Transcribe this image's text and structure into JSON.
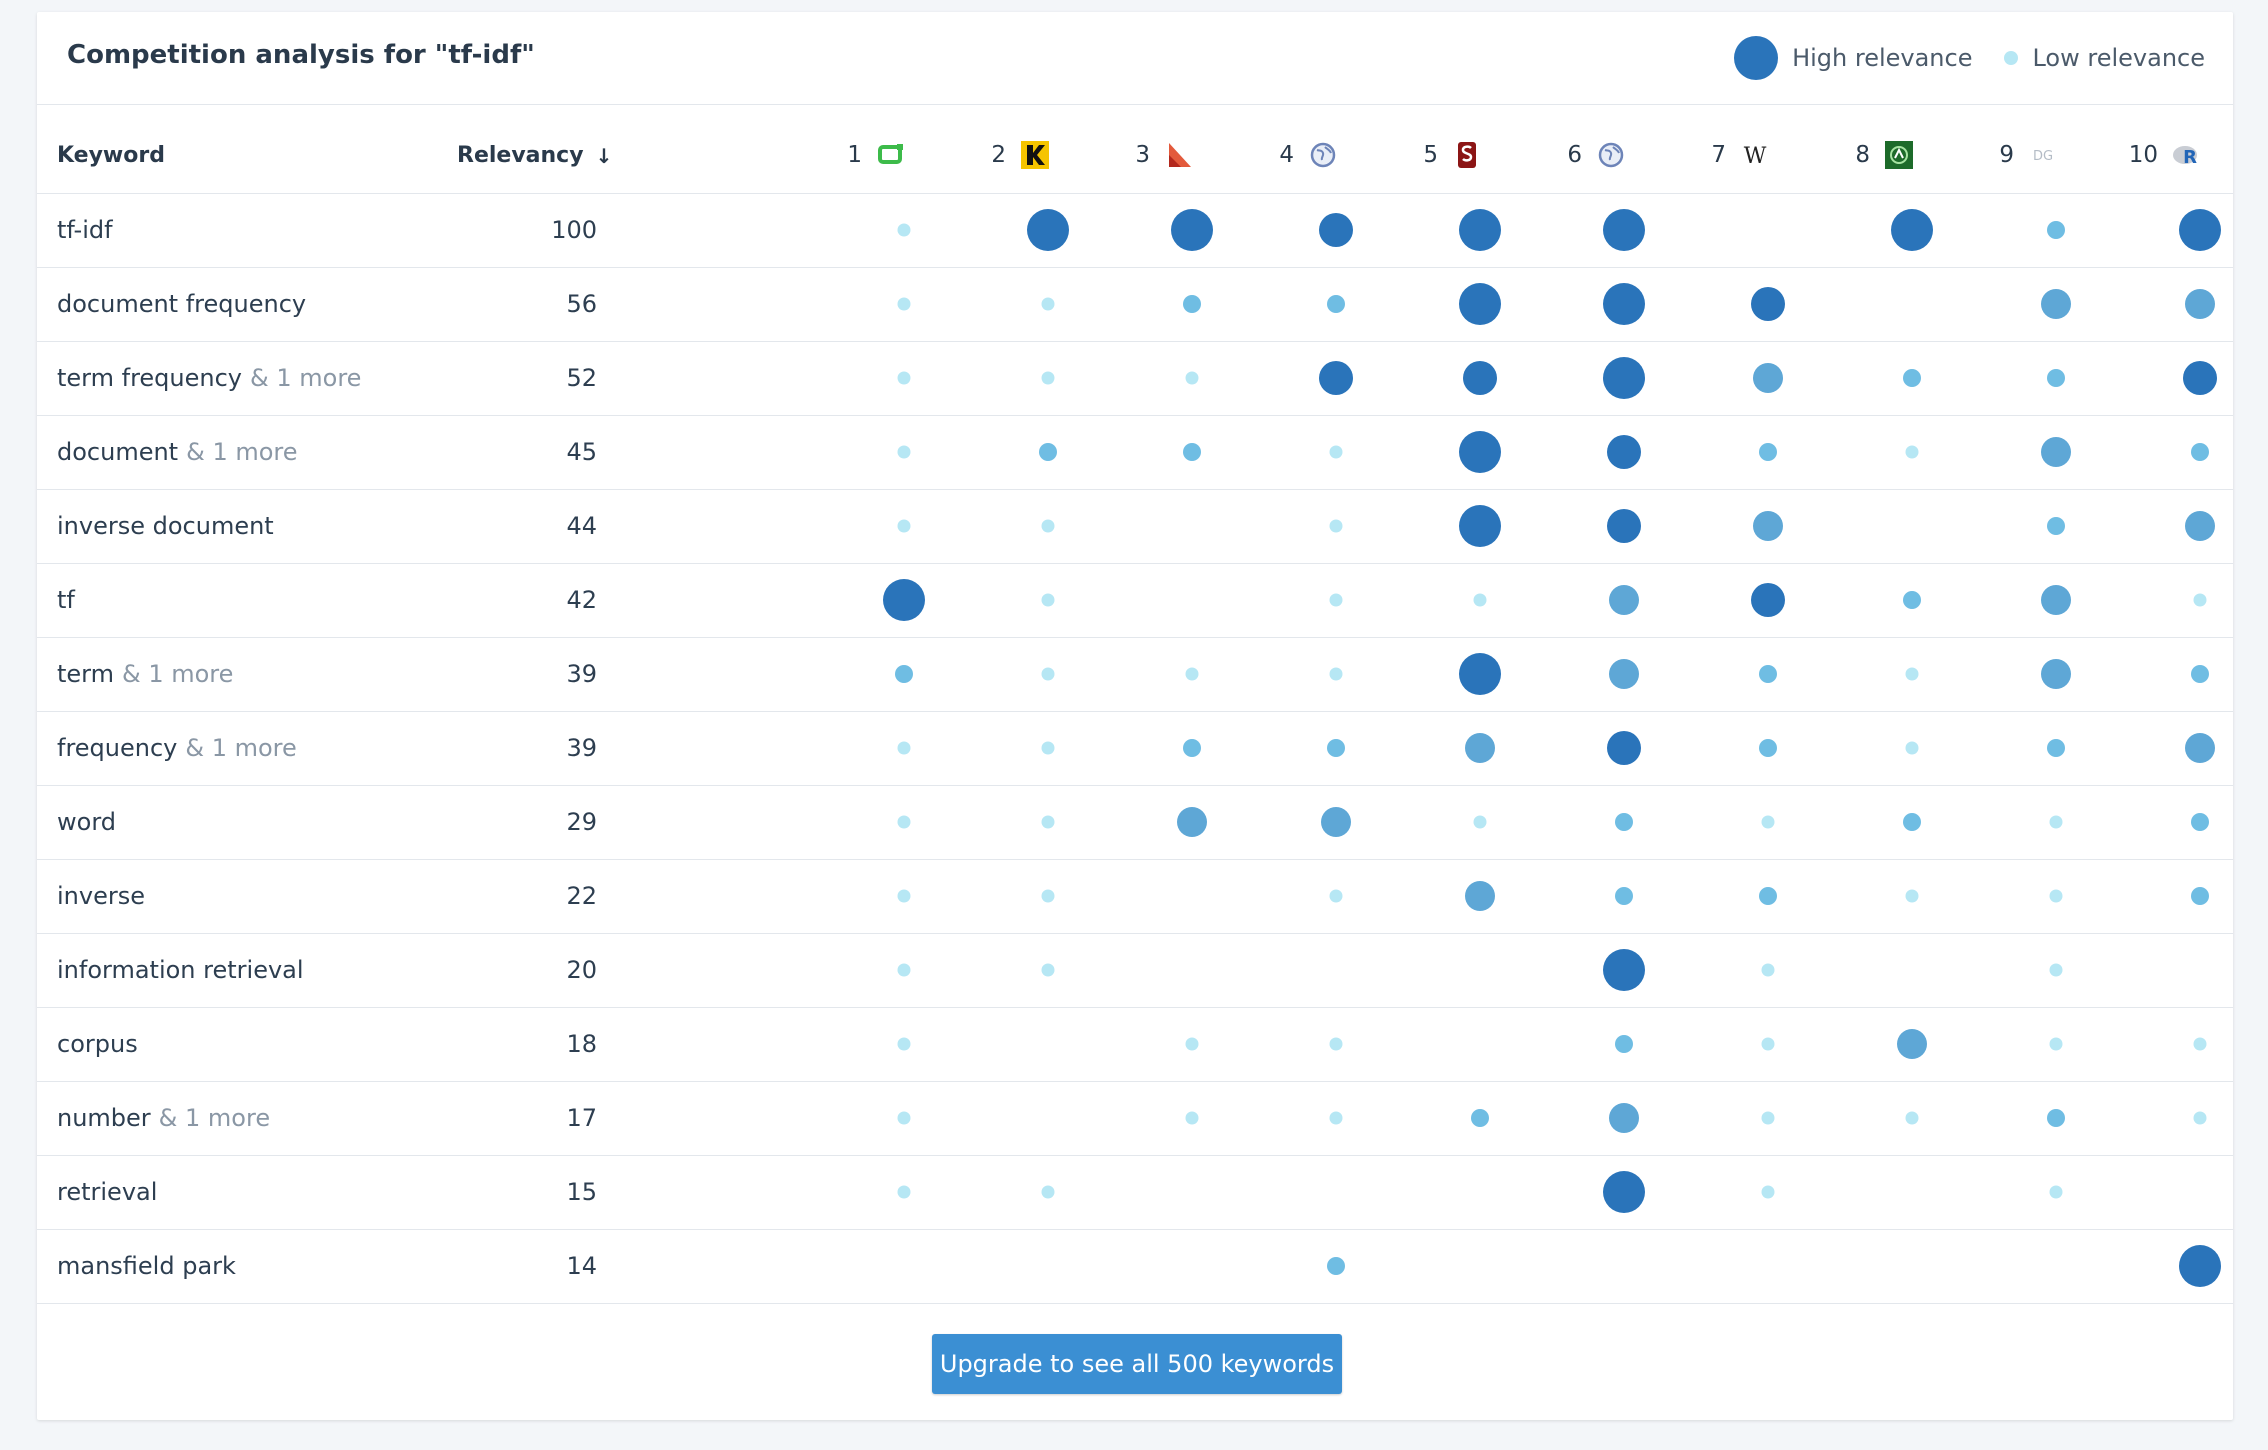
{
  "title": "Competition analysis for \"tf-idf\"",
  "legend": {
    "high": "High relevance",
    "low": "Low relevance"
  },
  "columns": {
    "keyword": "Keyword",
    "relevancy": "Relevancy"
  },
  "results": [
    {
      "rank": "1",
      "icon": "green-rectangle-favicon-icon"
    },
    {
      "rank": "2",
      "icon": "k-logo-favicon-icon"
    },
    {
      "rank": "3",
      "icon": "red-triangle-favicon-icon"
    },
    {
      "rank": "4",
      "icon": "globe-favicon-icon"
    },
    {
      "rank": "5",
      "icon": "stanford-s-favicon-icon"
    },
    {
      "rank": "6",
      "icon": "globe-favicon-icon"
    },
    {
      "rank": "7",
      "icon": "wikipedia-w-favicon-icon"
    },
    {
      "rank": "8",
      "icon": "green-badge-favicon-icon"
    },
    {
      "rank": "9",
      "icon": "dg-favicon-icon"
    },
    {
      "rank": "10",
      "icon": "r-logo-favicon-icon"
    }
  ],
  "colors": {
    "high": "#2a74ba",
    "mid": "#5ea7d6",
    "low": "#b6e7f4"
  },
  "rows": [
    {
      "keyword": "tf-idf",
      "more": "",
      "relevancy": "100",
      "levels": [
        1,
        5,
        5,
        4,
        5,
        5,
        0,
        5,
        2,
        5
      ]
    },
    {
      "keyword": "document frequency",
      "more": "",
      "relevancy": "56",
      "levels": [
        1,
        1,
        2,
        2,
        5,
        5,
        4,
        0,
        3,
        3
      ]
    },
    {
      "keyword": "term frequency",
      "more": "& 1 more",
      "relevancy": "52",
      "levels": [
        1,
        1,
        1,
        4,
        4,
        5,
        3,
        2,
        2,
        4
      ]
    },
    {
      "keyword": "document",
      "more": "& 1 more",
      "relevancy": "45",
      "levels": [
        1,
        2,
        2,
        1,
        5,
        4,
        2,
        1,
        3,
        2
      ]
    },
    {
      "keyword": "inverse document",
      "more": "",
      "relevancy": "44",
      "levels": [
        1,
        1,
        0,
        1,
        5,
        4,
        3,
        0,
        2,
        3
      ]
    },
    {
      "keyword": "tf",
      "more": "",
      "relevancy": "42",
      "levels": [
        5,
        1,
        0,
        1,
        1,
        3,
        4,
        2,
        3,
        1
      ]
    },
    {
      "keyword": "term",
      "more": "& 1 more",
      "relevancy": "39",
      "levels": [
        2,
        1,
        1,
        1,
        5,
        3,
        2,
        1,
        3,
        2
      ]
    },
    {
      "keyword": "frequency",
      "more": "& 1 more",
      "relevancy": "39",
      "levels": [
        1,
        1,
        2,
        2,
        3,
        4,
        2,
        1,
        2,
        3
      ]
    },
    {
      "keyword": "word",
      "more": "",
      "relevancy": "29",
      "levels": [
        1,
        1,
        3,
        3,
        1,
        2,
        1,
        2,
        1,
        2
      ]
    },
    {
      "keyword": "inverse",
      "more": "",
      "relevancy": "22",
      "levels": [
        1,
        1,
        0,
        1,
        3,
        2,
        2,
        1,
        1,
        2
      ]
    },
    {
      "keyword": "information retrieval",
      "more": "",
      "relevancy": "20",
      "levels": [
        1,
        1,
        0,
        0,
        0,
        5,
        1,
        0,
        1,
        0
      ]
    },
    {
      "keyword": "corpus",
      "more": "",
      "relevancy": "18",
      "levels": [
        1,
        0,
        1,
        1,
        0,
        2,
        1,
        3,
        1,
        1
      ]
    },
    {
      "keyword": "number",
      "more": "& 1 more",
      "relevancy": "17",
      "levels": [
        1,
        0,
        1,
        1,
        2,
        3,
        1,
        1,
        2,
        1
      ]
    },
    {
      "keyword": "retrieval",
      "more": "",
      "relevancy": "15",
      "levels": [
        1,
        1,
        0,
        0,
        0,
        5,
        1,
        0,
        1,
        0
      ]
    },
    {
      "keyword": "mansfield park",
      "more": "",
      "relevancy": "14",
      "levels": [
        0,
        0,
        0,
        2,
        0,
        0,
        0,
        0,
        0,
        5
      ]
    }
  ],
  "upgrade_label": "Upgrade to see all 500 keywords"
}
